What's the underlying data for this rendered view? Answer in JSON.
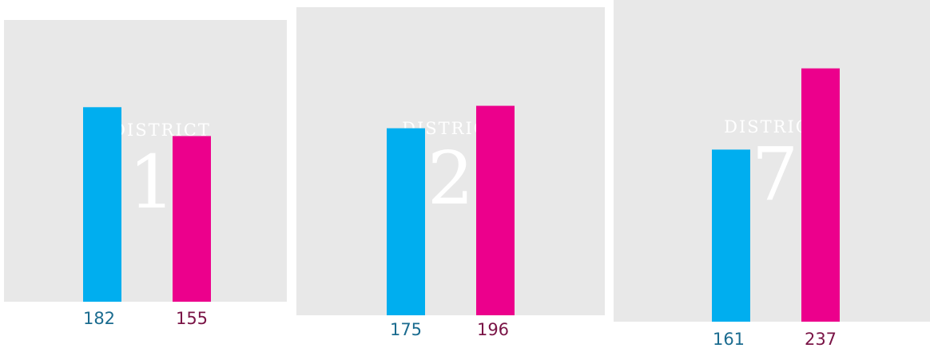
{
  "chart_data": [
    {
      "type": "bar",
      "district_word": "DISTRICT",
      "district_number": "1",
      "series": [
        {
          "values": [
            182
          ],
          "color": "#00aeef",
          "label_color": "#1a6b8f"
        },
        {
          "values": [
            155
          ],
          "color": "#ec008c",
          "label_color": "#7a1446"
        }
      ],
      "value_labels": [
        "182",
        "155"
      ]
    },
    {
      "type": "bar",
      "district_word": "DISTRICT",
      "district_number": "2",
      "series": [
        {
          "values": [
            175
          ],
          "color": "#00aeef",
          "label_color": "#1a6b8f"
        },
        {
          "values": [
            196
          ],
          "color": "#ec008c",
          "label_color": "#7a1446"
        }
      ],
      "value_labels": [
        "175",
        "196"
      ]
    },
    {
      "type": "bar",
      "district_word": "DISTRICT",
      "district_number": "7",
      "series": [
        {
          "values": [
            161
          ],
          "color": "#00aeef",
          "label_color": "#1a6b8f"
        },
        {
          "values": [
            237
          ],
          "color": "#ec008c",
          "label_color": "#7a1446"
        }
      ],
      "value_labels": [
        "161",
        "237"
      ]
    }
  ]
}
